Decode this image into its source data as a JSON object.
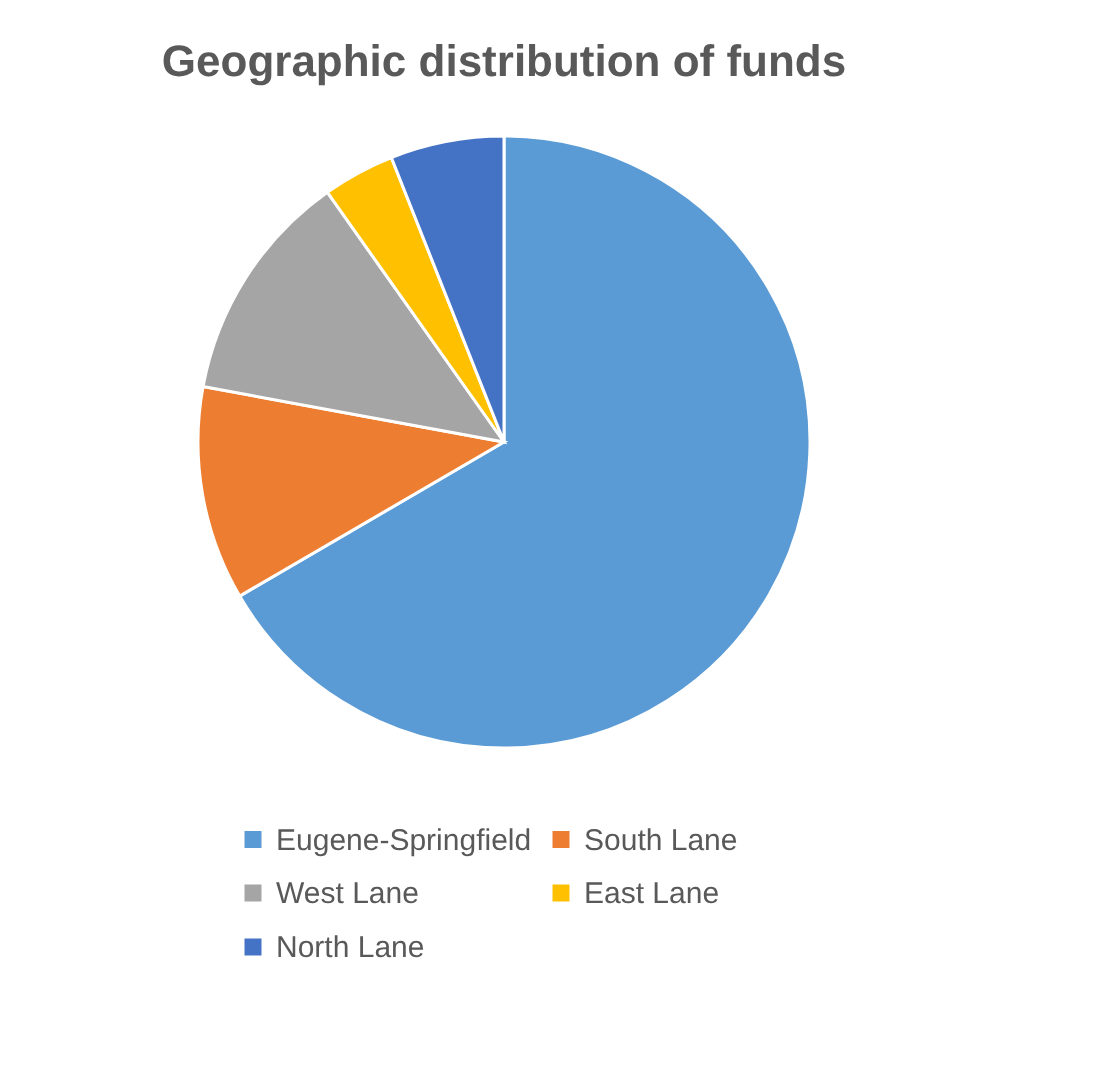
{
  "chart_data": {
    "type": "pie",
    "title": "Geographic distribution of funds",
    "categories": [
      "Eugene-Springfield",
      "South Lane",
      "West Lane",
      "East Lane",
      "North Lane"
    ],
    "values": [
      66.6,
      11.3,
      12.3,
      3.8,
      6.0
    ],
    "colors": [
      "#5b9bd5",
      "#ed7d31",
      "#a5a5a5",
      "#ffc000",
      "#4472c4"
    ],
    "legend": "bottom"
  }
}
